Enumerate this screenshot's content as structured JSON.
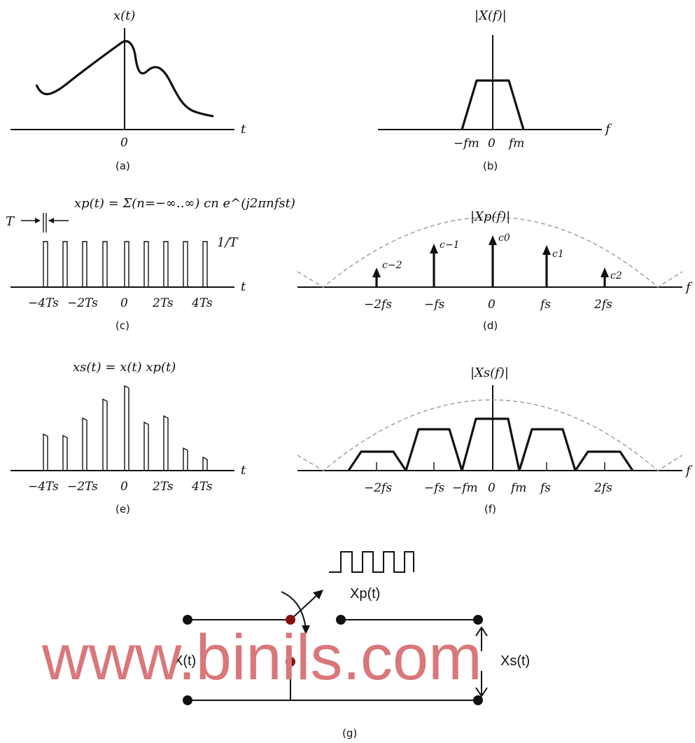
{
  "panels": {
    "a": {
      "caption": "(a)",
      "ylabel": "x(t)",
      "xlabel": "t",
      "ticks": [
        "0"
      ]
    },
    "b": {
      "caption": "(b)",
      "ylabel": "|X(f)|",
      "xlabel": "f",
      "ticks": [
        "−fm",
        "0",
        "fm"
      ]
    },
    "c": {
      "caption": "(c)",
      "formula": "xp(t) = Σ(n=−∞..∞) cn e^(j2πnfst)",
      "pulse_width_label": "T",
      "amplitude_label": "1/T",
      "xlabel": "t",
      "ticks": [
        "−4Ts",
        "−2Ts",
        "0",
        "2Ts",
        "4Ts"
      ]
    },
    "d": {
      "caption": "(d)",
      "ylabel": "|Xp(f)|",
      "xlabel": "f",
      "ticks": [
        "−2fs",
        "−fs",
        "0",
        "fs",
        "2fs"
      ],
      "coeffs": [
        "c−2",
        "c−1",
        "c0",
        "c1",
        "c2"
      ]
    },
    "e": {
      "caption": "(e)",
      "formula": "xs(t) = x(t) xp(t)",
      "xlabel": "t",
      "ticks": [
        "−4Ts",
        "−2Ts",
        "0",
        "2Ts",
        "4Ts"
      ]
    },
    "f": {
      "caption": "(f)",
      "ylabel": "|Xs(f)|",
      "xlabel": "f",
      "ticks": [
        "−2fs",
        "−fs",
        "−fm",
        "0",
        "fm",
        "fs",
        "2fs"
      ]
    },
    "g": {
      "caption": "(g)",
      "input_label": "X(t)",
      "pulse_label": "Xp(t)",
      "output_label": "Xs(t)"
    }
  },
  "watermark": "www.binils.com",
  "colors": {
    "ink": "#111111",
    "dashed": "#9a9a9a",
    "watermark": "#d9777a",
    "node": "#8a1010"
  }
}
